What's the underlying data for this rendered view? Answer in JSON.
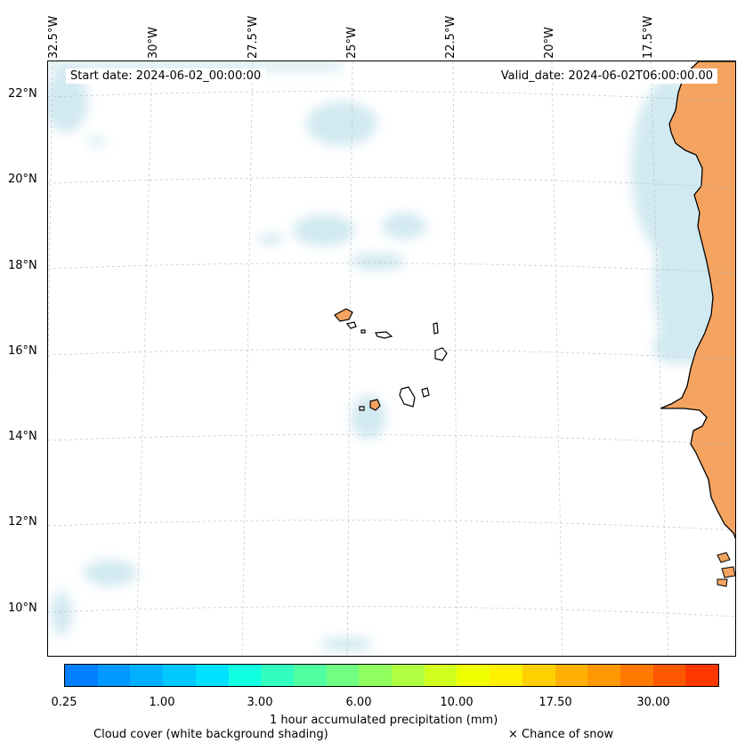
{
  "map": {
    "lon_labels": [
      "32.5°W",
      "30°W",
      "27.5°W",
      "25°W",
      "22.5°W",
      "20°W",
      "17.5°W"
    ],
    "lat_labels": [
      "22°N",
      "20°N",
      "18°N",
      "16°N",
      "14°N",
      "12°N",
      "10°N"
    ],
    "start_date": "Start date: 2024-06-02_00:00:00",
    "valid_date": "Valid_date: 2024-06-02T06:00:00.00",
    "land_color": "#f4a460",
    "cloud_color": "#add8e6"
  },
  "colorbar": {
    "colors": [
      "#0080ff",
      "#0099ff",
      "#00b0ff",
      "#00c8ff",
      "#00e0ff",
      "#10ffe0",
      "#30ffc0",
      "#50ffa0",
      "#70ff80",
      "#90ff60",
      "#b0ff40",
      "#d0ff20",
      "#f0ff00",
      "#fff000",
      "#ffd000",
      "#ffb000",
      "#ff9800",
      "#ff7800",
      "#ff5800",
      "#ff3800"
    ],
    "ticks": [
      "0.25",
      "1.00",
      "3.00",
      "6.00",
      "10.00",
      "17.50",
      "30.00"
    ],
    "label": "1 hour accumulated precipitation (mm)"
  },
  "legend": {
    "cloud_cover": "Cloud cover (white background shading)",
    "snow": "× Chance of snow"
  }
}
